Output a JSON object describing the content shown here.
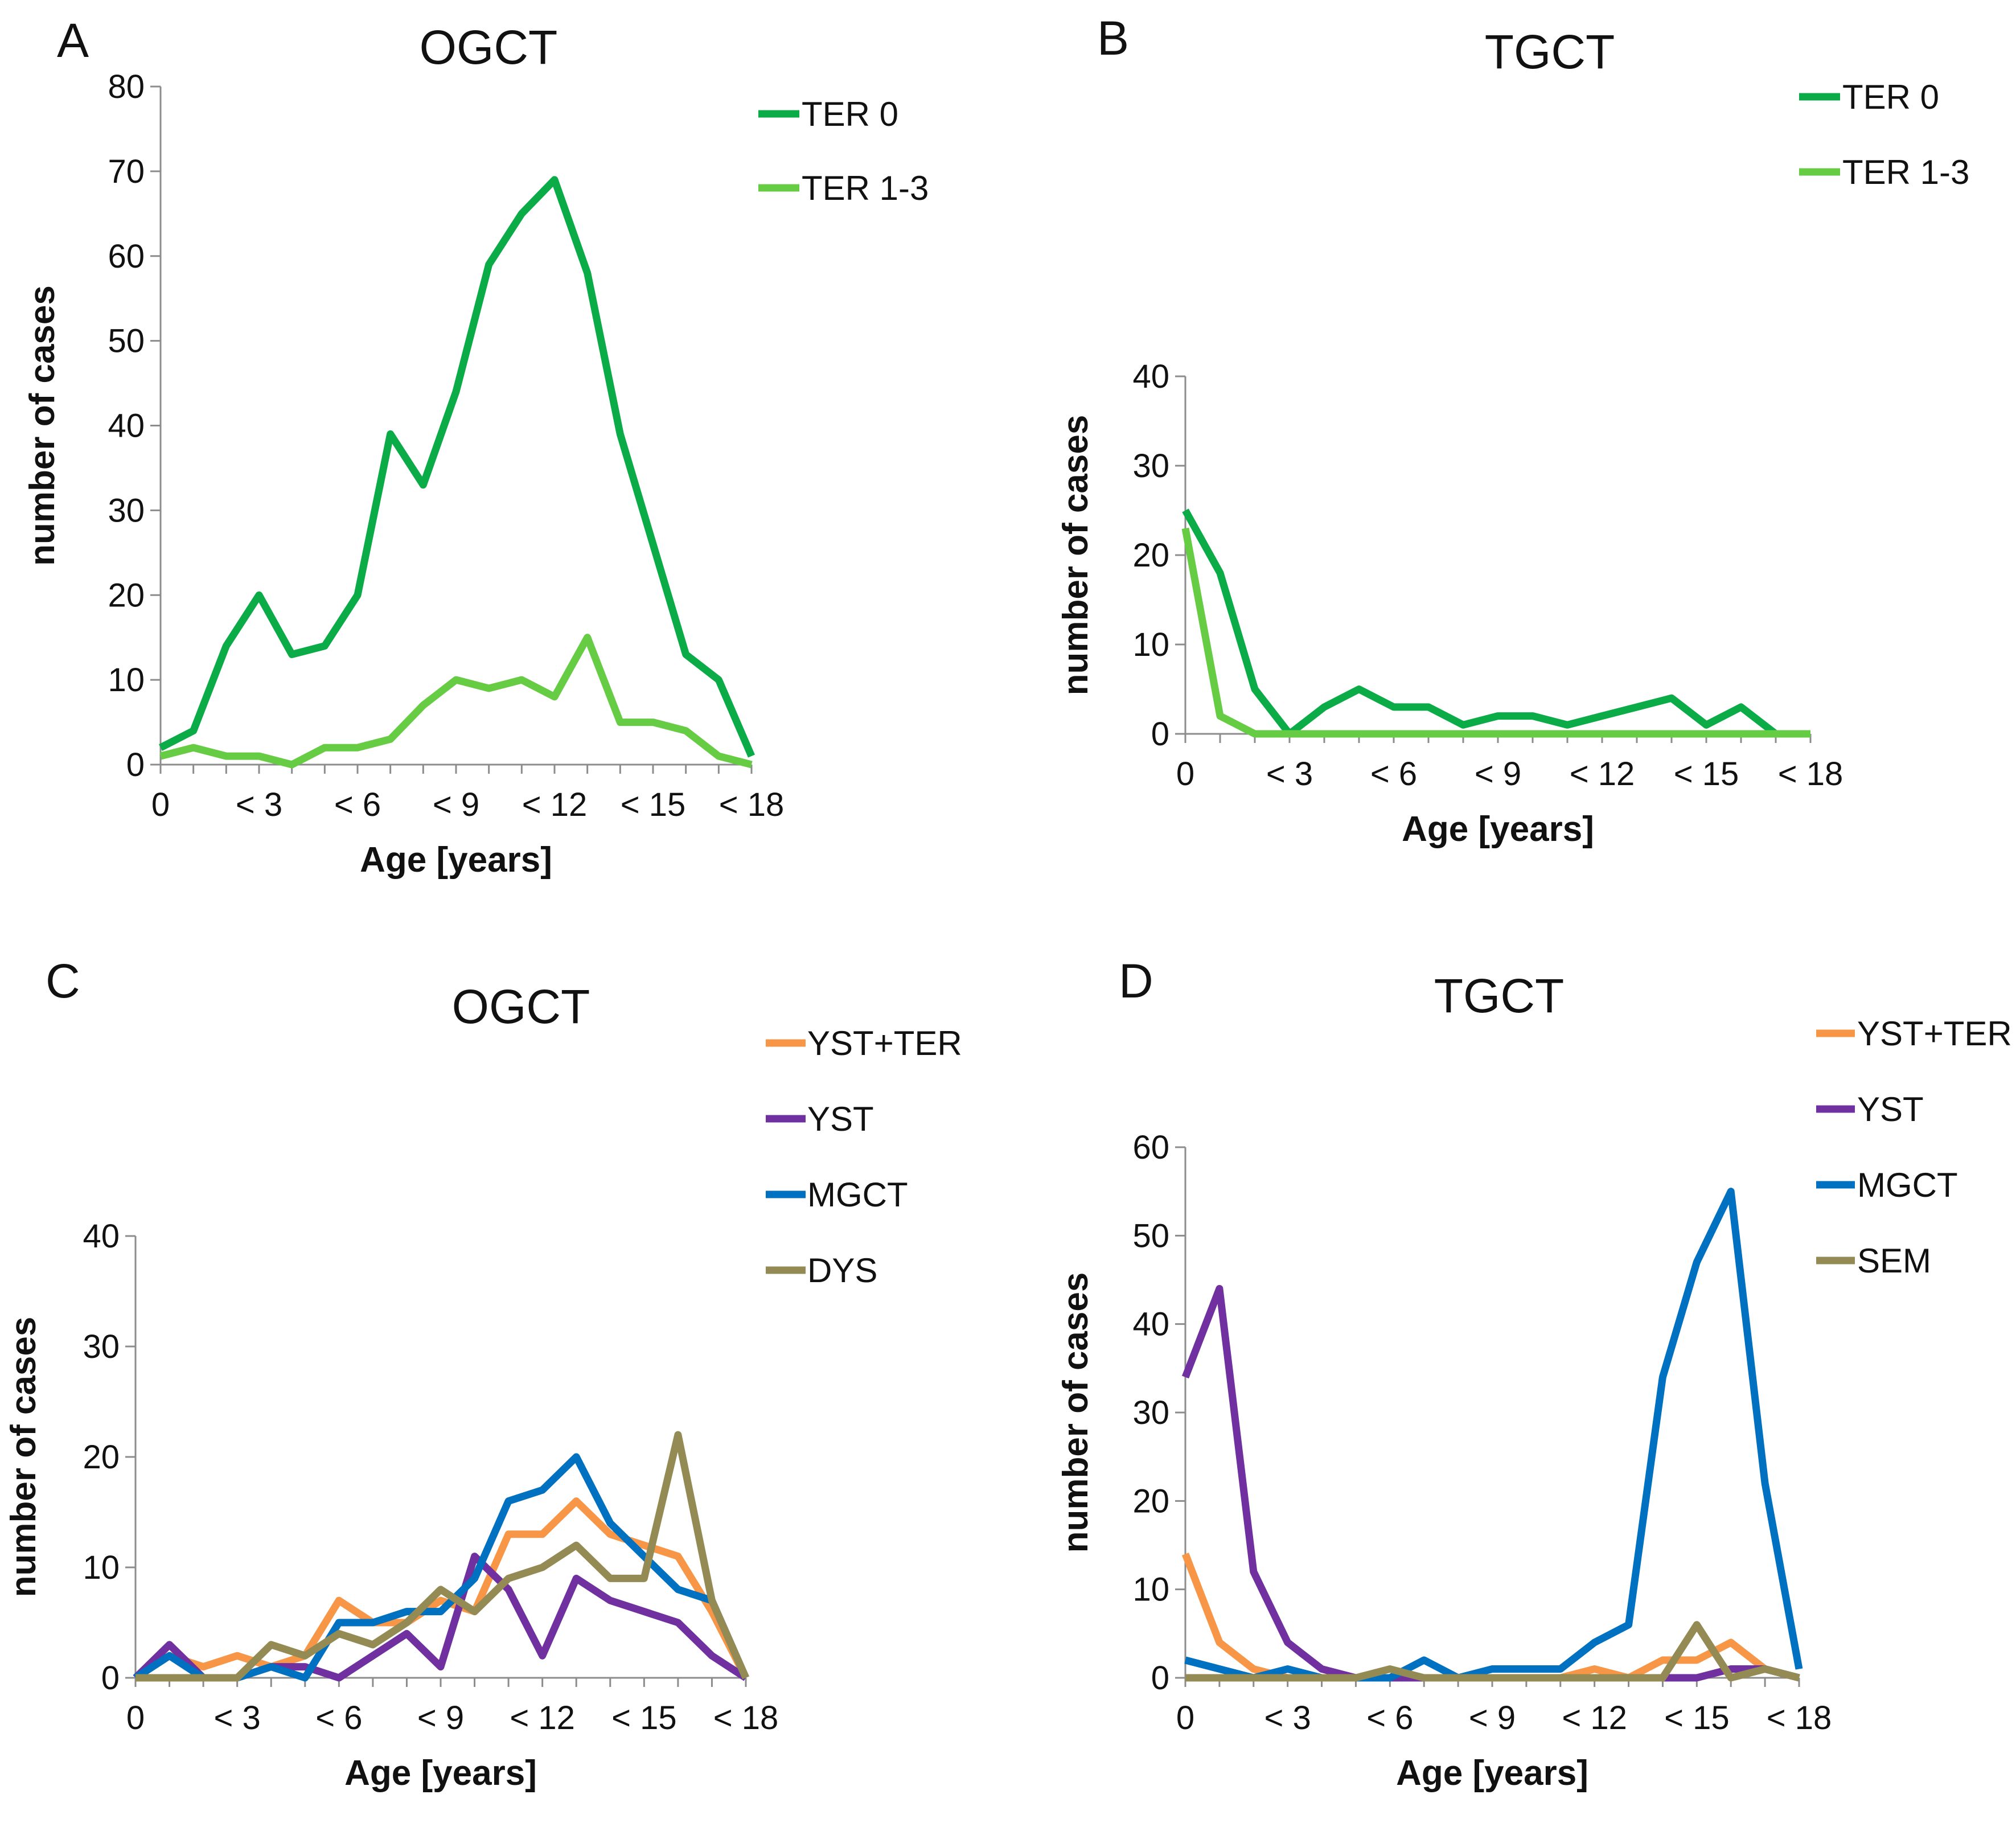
{
  "chart_data": [
    {
      "panel": "A",
      "type": "line",
      "title": "OGCT",
      "xlabel": "Age [years]",
      "ylabel": "number of cases",
      "x": [
        0,
        1,
        2,
        3,
        4,
        5,
        6,
        7,
        8,
        9,
        10,
        11,
        12,
        13,
        14,
        15,
        16,
        17,
        18
      ],
      "x_tick_labels": [
        "0",
        "< 3",
        "< 6",
        "< 9",
        "< 12",
        "< 15",
        "< 18"
      ],
      "ylim": [
        0,
        80
      ],
      "y_ticks": [
        0,
        10,
        20,
        30,
        40,
        50,
        60,
        70,
        80
      ],
      "legend_position": "top-right",
      "series": [
        {
          "name": "TER 0",
          "color": "#0bab47",
          "values": [
            2,
            4,
            14,
            20,
            13,
            14,
            20,
            39,
            33,
            44,
            59,
            65,
            69,
            58,
            39,
            26,
            13,
            10,
            1
          ]
        },
        {
          "name": "TER 1-3",
          "color": "#66cc44",
          "values": [
            1,
            2,
            1,
            1,
            0,
            2,
            2,
            3,
            7,
            10,
            9,
            10,
            8,
            15,
            5,
            5,
            4,
            1,
            0
          ]
        }
      ]
    },
    {
      "panel": "B",
      "type": "line",
      "title": "TGCT",
      "xlabel": "Age [years]",
      "ylabel": "number of cases",
      "x": [
        0,
        1,
        2,
        3,
        4,
        5,
        6,
        7,
        8,
        9,
        10,
        11,
        12,
        13,
        14,
        15,
        16,
        17,
        18
      ],
      "x_tick_labels": [
        "0",
        "< 3",
        "< 6",
        "< 9",
        "< 12",
        "< 15",
        "< 18"
      ],
      "ylim": [
        0,
        40
      ],
      "y_ticks": [
        0,
        10,
        20,
        30,
        40
      ],
      "legend_position": "top-right",
      "series": [
        {
          "name": "TER 0",
          "color": "#0bab47",
          "values": [
            25,
            18,
            5,
            0,
            3,
            5,
            3,
            3,
            1,
            2,
            2,
            1,
            2,
            3,
            4,
            1,
            3,
            0,
            0
          ]
        },
        {
          "name": "TER 1-3",
          "color": "#66cc44",
          "values": [
            23,
            2,
            0,
            0,
            0,
            0,
            0,
            0,
            0,
            0,
            0,
            0,
            0,
            0,
            0,
            0,
            0,
            0,
            0
          ]
        }
      ]
    },
    {
      "panel": "C",
      "type": "line",
      "title": "OGCT",
      "xlabel": "Age [years]",
      "ylabel": "number of cases",
      "x": [
        0,
        1,
        2,
        3,
        4,
        5,
        6,
        7,
        8,
        9,
        10,
        11,
        12,
        13,
        14,
        15,
        16,
        17,
        18
      ],
      "x_tick_labels": [
        "0",
        "< 3",
        "< 6",
        "< 9",
        "< 12",
        "< 15",
        "< 18"
      ],
      "ylim": [
        0,
        40
      ],
      "y_ticks": [
        0,
        10,
        20,
        30,
        40
      ],
      "legend_position": "top-right",
      "series": [
        {
          "name": "YST+TER",
          "color": "#f79646",
          "values": [
            0,
            2,
            1,
            2,
            1,
            2,
            7,
            5,
            5,
            7,
            6,
            13,
            13,
            16,
            13,
            12,
            11,
            6,
            0
          ]
        },
        {
          "name": "YST",
          "color": "#7030a0",
          "values": [
            0,
            3,
            0,
            0,
            1,
            1,
            0,
            2,
            4,
            1,
            11,
            8,
            2,
            9,
            7,
            6,
            5,
            2,
            0
          ]
        },
        {
          "name": "MGCT",
          "color": "#0070c0",
          "values": [
            0,
            2,
            0,
            0,
            1,
            0,
            5,
            5,
            6,
            6,
            9,
            16,
            17,
            20,
            14,
            11,
            8,
            7,
            0
          ]
        },
        {
          "name": "DYS",
          "color": "#948a54",
          "values": [
            0,
            0,
            0,
            0,
            3,
            2,
            4,
            3,
            5,
            8,
            6,
            9,
            10,
            12,
            9,
            9,
            22,
            7,
            0
          ]
        }
      ]
    },
    {
      "panel": "D",
      "type": "line",
      "title": "TGCT",
      "xlabel": "Age [years]",
      "ylabel": "number of cases",
      "x": [
        0,
        1,
        2,
        3,
        4,
        5,
        6,
        7,
        8,
        9,
        10,
        11,
        12,
        13,
        14,
        15,
        16,
        17,
        18
      ],
      "x_tick_labels": [
        "0",
        "< 3",
        "< 6",
        "< 9",
        "< 12",
        "< 15",
        "< 18"
      ],
      "ylim": [
        0,
        60
      ],
      "y_ticks": [
        0,
        10,
        20,
        30,
        40,
        50,
        60
      ],
      "legend_position": "top-right",
      "series": [
        {
          "name": "YST+TER",
          "color": "#f79646",
          "values": [
            14,
            4,
            1,
            0,
            0,
            0,
            0,
            0,
            0,
            0,
            0,
            0,
            1,
            0,
            2,
            2,
            4,
            1,
            0
          ]
        },
        {
          "name": "YST",
          "color": "#7030a0",
          "values": [
            34,
            44,
            12,
            4,
            1,
            0,
            0,
            0,
            0,
            0,
            0,
            0,
            0,
            0,
            0,
            0,
            1,
            1,
            0
          ]
        },
        {
          "name": "MGCT",
          "color": "#0070c0",
          "values": [
            2,
            1,
            0,
            1,
            0,
            0,
            0,
            2,
            0,
            1,
            1,
            1,
            4,
            6,
            34,
            47,
            55,
            22,
            1
          ]
        },
        {
          "name": "SEM",
          "color": "#948a54",
          "values": [
            0,
            0,
            0,
            0,
            0,
            0,
            1,
            0,
            0,
            0,
            0,
            0,
            0,
            0,
            0,
            6,
            0,
            1,
            0
          ]
        }
      ]
    }
  ]
}
